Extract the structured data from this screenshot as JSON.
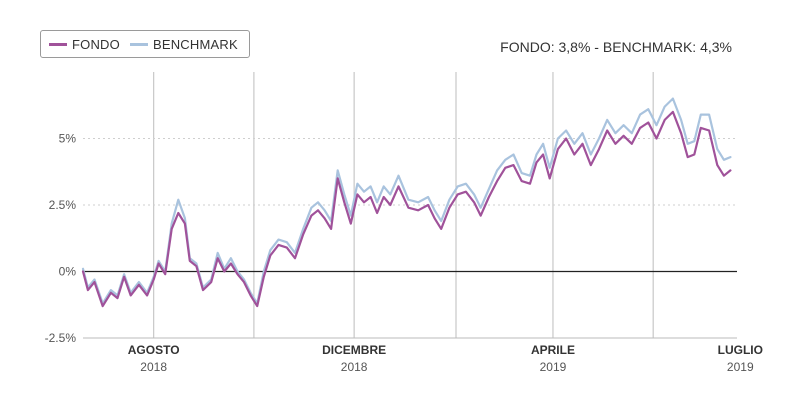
{
  "legend": {
    "items": [
      {
        "label": "FONDO",
        "color": "#a0529a"
      },
      {
        "label": "BENCHMARK",
        "color": "#a9c3de"
      }
    ]
  },
  "summary": "FONDO: 3,8% - BENCHMARK: 4,3%",
  "chart_data": {
    "type": "line",
    "title": "",
    "xlabel": "",
    "ylabel": "",
    "ylim": [
      -2.5,
      7.5
    ],
    "y_ticks": [
      "-2.5%",
      "0%",
      "2.5%",
      "5%"
    ],
    "y_tick_values": [
      -2.5,
      0,
      2.5,
      5
    ],
    "x_start": "2018-06-19",
    "x_end": "2019-07-22",
    "x_ticks": [
      {
        "date": "2018-08-01",
        "month": "AGOSTO",
        "year": "2018"
      },
      {
        "date": "2018-12-01",
        "month": "DICEMBRE",
        "year": "2018"
      },
      {
        "date": "2019-04-01",
        "month": "APRILE",
        "year": "2019"
      },
      {
        "date": "2019-07-24",
        "month": "LUGLIO",
        "year": "2019"
      }
    ],
    "vertical_gridlines": [
      "2018-08-01",
      "2018-10-01",
      "2018-12-01",
      "2019-02-01",
      "2019-04-01",
      "2019-06-01"
    ],
    "grid": true,
    "legend_position": "top-left",
    "series": [
      {
        "name": "FONDO",
        "color": "#a0529a",
        "points": [
          [
            "2018-06-19",
            0.0
          ],
          [
            "2018-06-22",
            -0.7
          ],
          [
            "2018-06-26",
            -0.4
          ],
          [
            "2018-07-01",
            -1.3
          ],
          [
            "2018-07-06",
            -0.8
          ],
          [
            "2018-07-10",
            -1.0
          ],
          [
            "2018-07-14",
            -0.2
          ],
          [
            "2018-07-18",
            -0.9
          ],
          [
            "2018-07-23",
            -0.5
          ],
          [
            "2018-07-28",
            -0.9
          ],
          [
            "2018-08-01",
            -0.3
          ],
          [
            "2018-08-04",
            0.3
          ],
          [
            "2018-08-08",
            -0.1
          ],
          [
            "2018-08-12",
            1.6
          ],
          [
            "2018-08-16",
            2.2
          ],
          [
            "2018-08-20",
            1.8
          ],
          [
            "2018-08-23",
            0.4
          ],
          [
            "2018-08-27",
            0.2
          ],
          [
            "2018-08-31",
            -0.7
          ],
          [
            "2018-09-05",
            -0.4
          ],
          [
            "2018-09-09",
            0.5
          ],
          [
            "2018-09-13",
            0.0
          ],
          [
            "2018-09-17",
            0.3
          ],
          [
            "2018-09-21",
            -0.1
          ],
          [
            "2018-09-25",
            -0.4
          ],
          [
            "2018-09-29",
            -0.9
          ],
          [
            "2018-10-03",
            -1.3
          ],
          [
            "2018-10-07",
            -0.2
          ],
          [
            "2018-10-11",
            0.6
          ],
          [
            "2018-10-16",
            1.0
          ],
          [
            "2018-10-21",
            0.9
          ],
          [
            "2018-10-26",
            0.5
          ],
          [
            "2018-10-31",
            1.4
          ],
          [
            "2018-11-05",
            2.1
          ],
          [
            "2018-11-09",
            2.3
          ],
          [
            "2018-11-13",
            2.0
          ],
          [
            "2018-11-17",
            1.6
          ],
          [
            "2018-11-21",
            3.5
          ],
          [
            "2018-11-25",
            2.6
          ],
          [
            "2018-11-29",
            1.8
          ],
          [
            "2018-12-03",
            2.9
          ],
          [
            "2018-12-07",
            2.6
          ],
          [
            "2018-12-11",
            2.8
          ],
          [
            "2018-12-15",
            2.2
          ],
          [
            "2018-12-19",
            2.8
          ],
          [
            "2018-12-23",
            2.5
          ],
          [
            "2018-12-28",
            3.2
          ],
          [
            "2019-01-03",
            2.4
          ],
          [
            "2019-01-09",
            2.3
          ],
          [
            "2019-01-15",
            2.5
          ],
          [
            "2019-01-19",
            2.0
          ],
          [
            "2019-01-23",
            1.6
          ],
          [
            "2019-01-28",
            2.4
          ],
          [
            "2019-02-02",
            2.9
          ],
          [
            "2019-02-07",
            3.0
          ],
          [
            "2019-02-12",
            2.6
          ],
          [
            "2019-02-16",
            2.1
          ],
          [
            "2019-02-21",
            2.8
          ],
          [
            "2019-02-26",
            3.4
          ],
          [
            "2019-03-03",
            3.9
          ],
          [
            "2019-03-08",
            4.0
          ],
          [
            "2019-03-13",
            3.4
          ],
          [
            "2019-03-18",
            3.3
          ],
          [
            "2019-03-22",
            4.1
          ],
          [
            "2019-03-26",
            4.4
          ],
          [
            "2019-03-30",
            3.5
          ],
          [
            "2019-04-04",
            4.6
          ],
          [
            "2019-04-09",
            5.0
          ],
          [
            "2019-04-14",
            4.4
          ],
          [
            "2019-04-19",
            4.8
          ],
          [
            "2019-04-24",
            4.0
          ],
          [
            "2019-04-29",
            4.6
          ],
          [
            "2019-05-04",
            5.3
          ],
          [
            "2019-05-09",
            4.8
          ],
          [
            "2019-05-14",
            5.1
          ],
          [
            "2019-05-19",
            4.8
          ],
          [
            "2019-05-24",
            5.4
          ],
          [
            "2019-05-29",
            5.6
          ],
          [
            "2019-06-03",
            5.0
          ],
          [
            "2019-06-08",
            5.7
          ],
          [
            "2019-06-13",
            6.0
          ],
          [
            "2019-06-18",
            5.2
          ],
          [
            "2019-06-22",
            4.3
          ],
          [
            "2019-06-26",
            4.4
          ],
          [
            "2019-06-30",
            5.4
          ],
          [
            "2019-07-05",
            5.3
          ],
          [
            "2019-07-10",
            4.0
          ],
          [
            "2019-07-14",
            3.6
          ],
          [
            "2019-07-18",
            3.8
          ]
        ]
      },
      {
        "name": "BENCHMARK",
        "color": "#a9c3de",
        "points": [
          [
            "2018-06-19",
            0.1
          ],
          [
            "2018-06-22",
            -0.6
          ],
          [
            "2018-06-26",
            -0.3
          ],
          [
            "2018-07-01",
            -1.2
          ],
          [
            "2018-07-06",
            -0.7
          ],
          [
            "2018-07-10",
            -0.9
          ],
          [
            "2018-07-14",
            -0.1
          ],
          [
            "2018-07-18",
            -0.8
          ],
          [
            "2018-07-23",
            -0.4
          ],
          [
            "2018-07-28",
            -0.8
          ],
          [
            "2018-08-01",
            -0.2
          ],
          [
            "2018-08-04",
            0.4
          ],
          [
            "2018-08-08",
            0.0
          ],
          [
            "2018-08-12",
            1.8
          ],
          [
            "2018-08-16",
            2.7
          ],
          [
            "2018-08-20",
            2.0
          ],
          [
            "2018-08-23",
            0.5
          ],
          [
            "2018-08-27",
            0.3
          ],
          [
            "2018-08-31",
            -0.6
          ],
          [
            "2018-09-05",
            -0.3
          ],
          [
            "2018-09-09",
            0.7
          ],
          [
            "2018-09-13",
            0.1
          ],
          [
            "2018-09-17",
            0.5
          ],
          [
            "2018-09-21",
            0.0
          ],
          [
            "2018-09-25",
            -0.3
          ],
          [
            "2018-09-29",
            -0.8
          ],
          [
            "2018-10-03",
            -1.2
          ],
          [
            "2018-10-07",
            0.0
          ],
          [
            "2018-10-11",
            0.8
          ],
          [
            "2018-10-16",
            1.2
          ],
          [
            "2018-10-21",
            1.1
          ],
          [
            "2018-10-26",
            0.7
          ],
          [
            "2018-10-31",
            1.6
          ],
          [
            "2018-11-05",
            2.4
          ],
          [
            "2018-11-09",
            2.6
          ],
          [
            "2018-11-13",
            2.3
          ],
          [
            "2018-11-17",
            1.9
          ],
          [
            "2018-11-21",
            3.8
          ],
          [
            "2018-11-25",
            2.9
          ],
          [
            "2018-11-29",
            2.1
          ],
          [
            "2018-12-03",
            3.3
          ],
          [
            "2018-12-07",
            3.0
          ],
          [
            "2018-12-11",
            3.2
          ],
          [
            "2018-12-15",
            2.6
          ],
          [
            "2018-12-19",
            3.2
          ],
          [
            "2018-12-23",
            2.9
          ],
          [
            "2018-12-28",
            3.6
          ],
          [
            "2019-01-03",
            2.7
          ],
          [
            "2019-01-09",
            2.6
          ],
          [
            "2019-01-15",
            2.8
          ],
          [
            "2019-01-19",
            2.3
          ],
          [
            "2019-01-23",
            1.9
          ],
          [
            "2019-01-28",
            2.7
          ],
          [
            "2019-02-02",
            3.2
          ],
          [
            "2019-02-07",
            3.3
          ],
          [
            "2019-02-12",
            2.9
          ],
          [
            "2019-02-16",
            2.4
          ],
          [
            "2019-02-21",
            3.1
          ],
          [
            "2019-02-26",
            3.8
          ],
          [
            "2019-03-03",
            4.2
          ],
          [
            "2019-03-08",
            4.4
          ],
          [
            "2019-03-13",
            3.7
          ],
          [
            "2019-03-18",
            3.6
          ],
          [
            "2019-03-22",
            4.4
          ],
          [
            "2019-03-26",
            4.8
          ],
          [
            "2019-03-30",
            3.9
          ],
          [
            "2019-04-04",
            5.0
          ],
          [
            "2019-04-09",
            5.3
          ],
          [
            "2019-04-14",
            4.8
          ],
          [
            "2019-04-19",
            5.2
          ],
          [
            "2019-04-24",
            4.4
          ],
          [
            "2019-04-29",
            5.0
          ],
          [
            "2019-05-04",
            5.7
          ],
          [
            "2019-05-09",
            5.2
          ],
          [
            "2019-05-14",
            5.5
          ],
          [
            "2019-05-19",
            5.2
          ],
          [
            "2019-05-24",
            5.9
          ],
          [
            "2019-05-29",
            6.1
          ],
          [
            "2019-06-03",
            5.5
          ],
          [
            "2019-06-08",
            6.2
          ],
          [
            "2019-06-13",
            6.5
          ],
          [
            "2019-06-18",
            5.7
          ],
          [
            "2019-06-22",
            4.8
          ],
          [
            "2019-06-26",
            4.9
          ],
          [
            "2019-06-30",
            5.9
          ],
          [
            "2019-07-05",
            5.9
          ],
          [
            "2019-07-10",
            4.6
          ],
          [
            "2019-07-14",
            4.2
          ],
          [
            "2019-07-18",
            4.3
          ]
        ]
      }
    ]
  }
}
